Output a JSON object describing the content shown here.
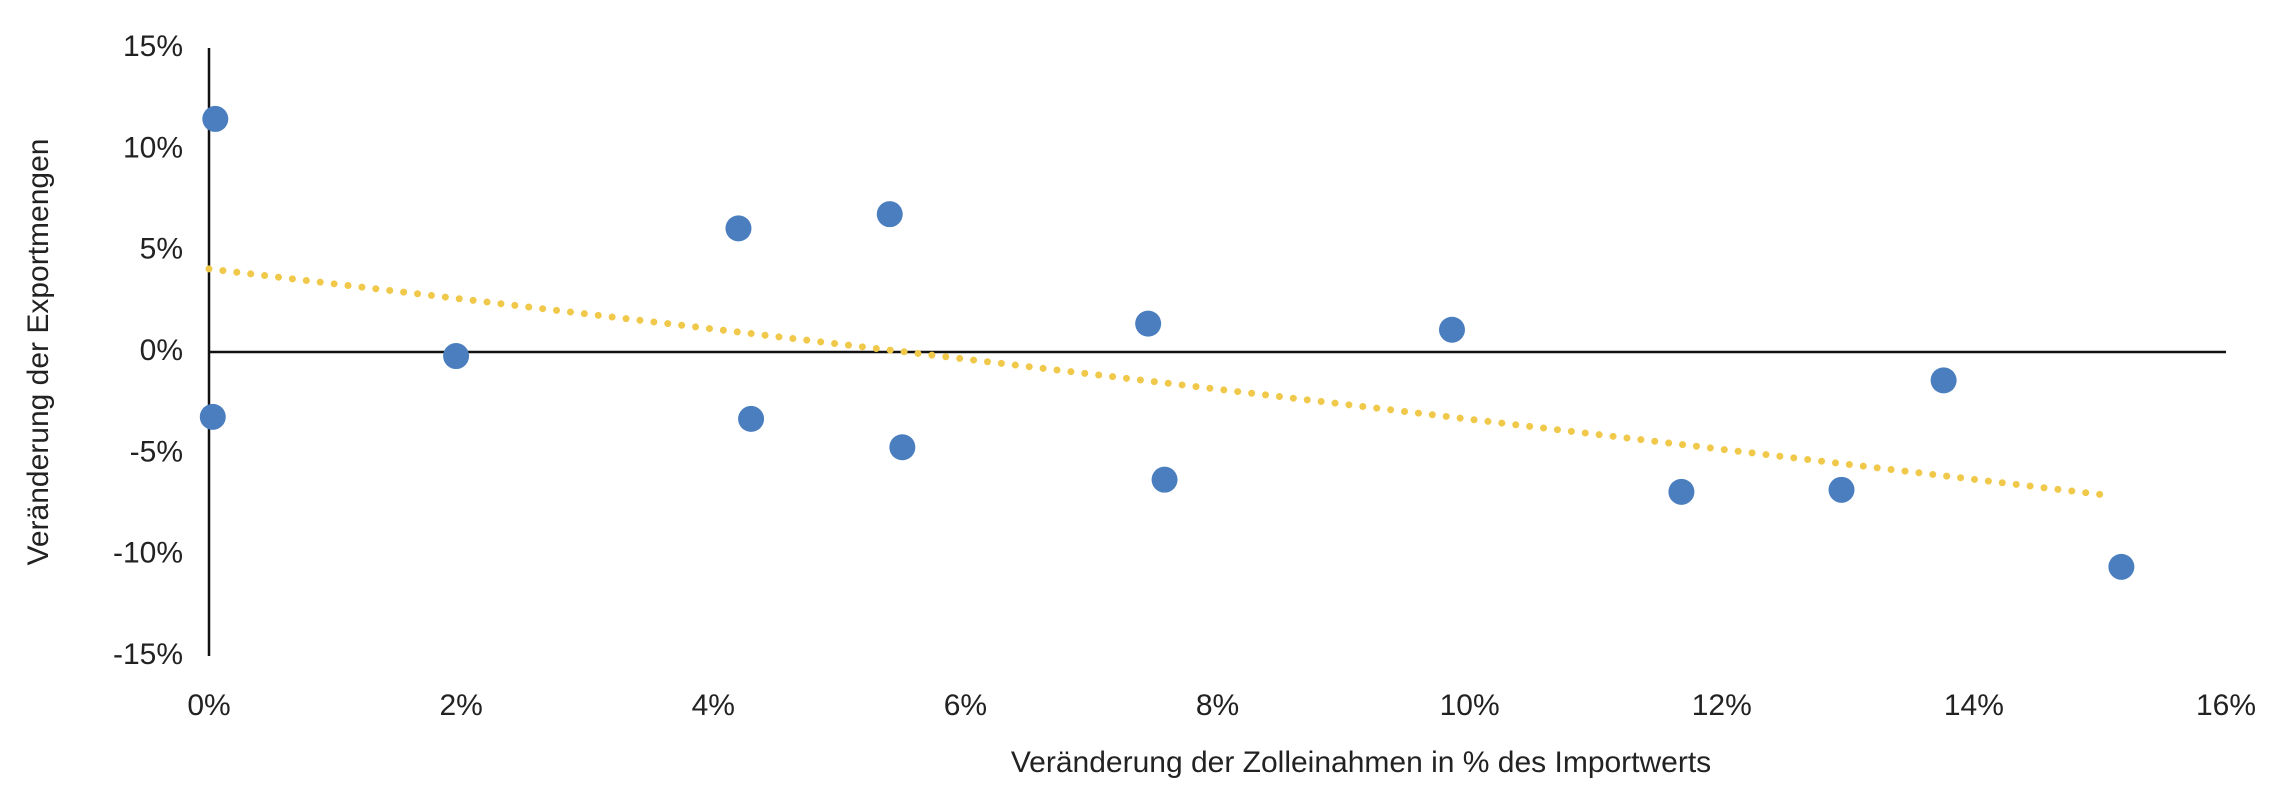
{
  "chart_data": {
    "type": "scatter",
    "x_label": "Veränderung der Zolleinahmen in % des Importwerts",
    "y_label": "Veränderung der Exportmengen",
    "series": [
      {
        "color": "#4a7ebf",
        "x": [
          0.05,
          0.03,
          1.96,
          4.2,
          4.3,
          5.4,
          5.5,
          7.45,
          7.58,
          9.86,
          11.68,
          12.95,
          13.76,
          15.17
        ],
        "values": [
          11.5,
          -3.2,
          -0.2,
          6.1,
          -3.3,
          6.8,
          -4.7,
          1.4,
          -6.3,
          1.1,
          -6.9,
          -6.8,
          -1.4,
          -10.6
        ]
      }
    ],
    "trendline": {
      "color": "#f0c84a",
      "x": [
        0,
        15.1
      ],
      "values": [
        4.1,
        -7.1
      ]
    },
    "xlim": [
      0,
      16
    ],
    "xticks": [
      {
        "value": 0,
        "label": "0%"
      },
      {
        "value": 2,
        "label": "2%"
      },
      {
        "value": 4,
        "label": "4%"
      },
      {
        "value": 6,
        "label": "6%"
      },
      {
        "value": 8,
        "label": "8%"
      },
      {
        "value": 10,
        "label": "10%"
      },
      {
        "value": 12,
        "label": "12%"
      },
      {
        "value": 14,
        "label": "14%"
      },
      {
        "value": 16,
        "label": "16%"
      }
    ],
    "ylim": [
      -15,
      15
    ],
    "yticks": [
      {
        "value": 15,
        "label": "15%"
      },
      {
        "value": 10,
        "label": "10%"
      },
      {
        "value": 5,
        "label": "5%"
      },
      {
        "value": 0,
        "label": "0%"
      },
      {
        "value": -5,
        "label": "-5%"
      },
      {
        "value": -10,
        "label": "-10%"
      },
      {
        "value": -15,
        "label": "-15%"
      }
    ]
  }
}
